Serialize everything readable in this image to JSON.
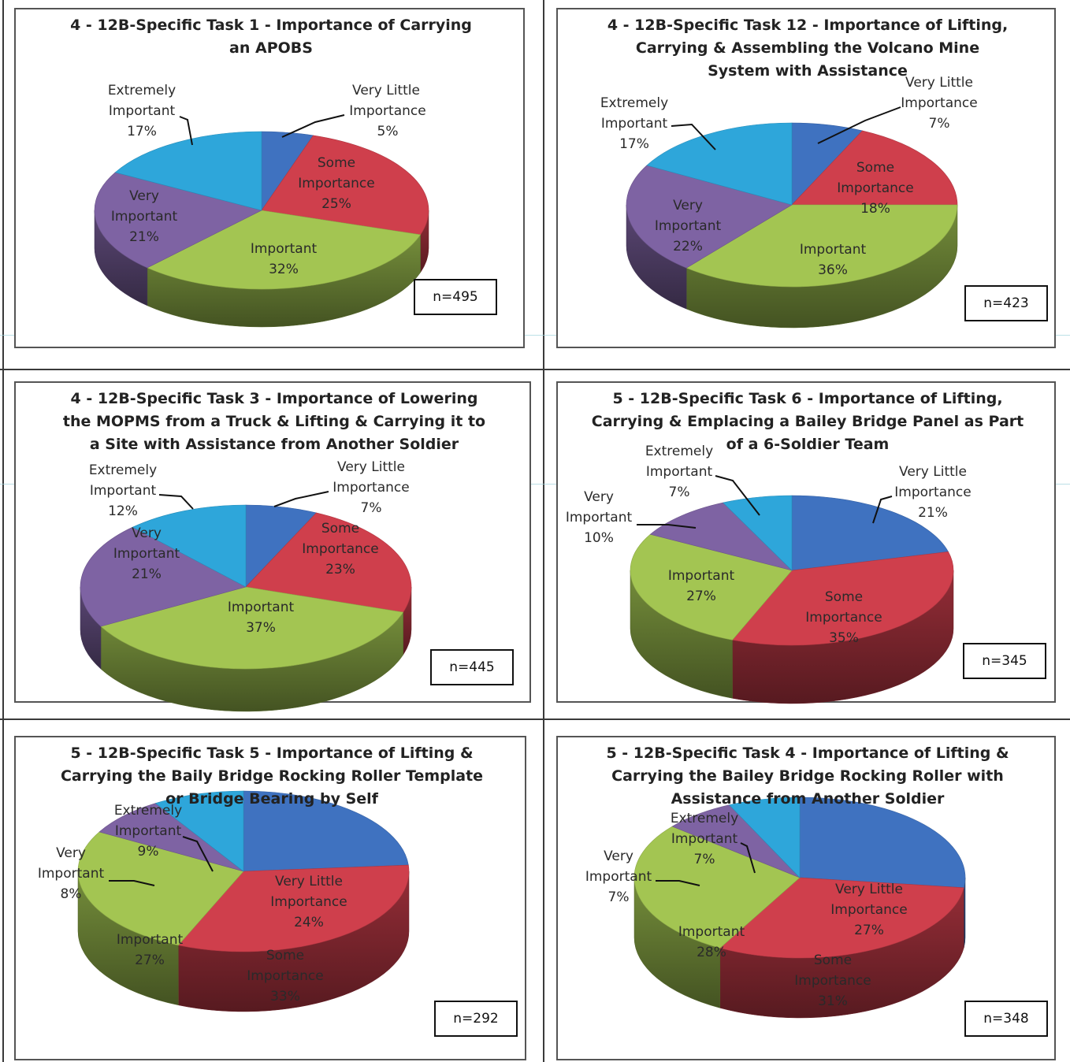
{
  "colors": {
    "Very Little Importance": "#3f72c0",
    "Some Importance": "#cf3f4c",
    "Important": "#a3c552",
    "Very Important": "#7e63a3",
    "Extremely Important": "#2ea6da"
  },
  "chart_data": [
    {
      "type": "pie",
      "title": "4 - 12B-Specific Task 1 - Importance of Carrying an APOBS",
      "n_label": "n=495",
      "slices": [
        {
          "label": "Very Little Importance",
          "value": 5,
          "text": "5%"
        },
        {
          "label": "Some Importance",
          "value": 25,
          "text": "25%"
        },
        {
          "label": "Important",
          "value": 32,
          "text": "32%"
        },
        {
          "label": "Very Important",
          "value": 21,
          "text": "21%"
        },
        {
          "label": "Extremely Important",
          "value": 17,
          "text": "17%"
        }
      ]
    },
    {
      "type": "pie",
      "title": "4 - 12B-Specific Task 12 - Importance of Lifting, Carrying & Assembling the Volcano Mine System with Assistance",
      "n_label": "n=423",
      "slices": [
        {
          "label": "Very Little Importance",
          "value": 7,
          "text": "7%"
        },
        {
          "label": "Some Importance",
          "value": 18,
          "text": "18%"
        },
        {
          "label": "Important",
          "value": 36,
          "text": "36%"
        },
        {
          "label": "Very Important",
          "value": 22,
          "text": "22%"
        },
        {
          "label": "Extremely Important",
          "value": 17,
          "text": "17%"
        }
      ]
    },
    {
      "type": "pie",
      "title": "4 - 12B-Specific Task 3 - Importance of Lowering the MOPMS from a Truck & Lifting & Carrying it to a Site with Assistance from Another Soldier",
      "n_label": "n=445",
      "slices": [
        {
          "label": "Very Little Importance",
          "value": 7,
          "text": "7%"
        },
        {
          "label": "Some Importance",
          "value": 23,
          "text": "23%"
        },
        {
          "label": "Important",
          "value": 37,
          "text": "37%"
        },
        {
          "label": "Very Important",
          "value": 21,
          "text": "21%"
        },
        {
          "label": "Extremely Important",
          "value": 12,
          "text": "12%"
        }
      ]
    },
    {
      "type": "pie",
      "title": "5 - 12B-Specific Task 6 - Importance of Lifting, Carrying & Emplacing a Bailey Bridge Panel as Part of a 6-Soldier Team",
      "n_label": "n=345",
      "slices": [
        {
          "label": "Very Little Importance",
          "value": 21,
          "text": "21%"
        },
        {
          "label": "Some Importance",
          "value": 35,
          "text": "35%"
        },
        {
          "label": "Important",
          "value": 27,
          "text": "27%"
        },
        {
          "label": "Very Important",
          "value": 10,
          "text": "10%"
        },
        {
          "label": "Extremely Important",
          "value": 7,
          "text": "7%"
        }
      ]
    },
    {
      "type": "pie",
      "title": "5 - 12B-Specific Task 5 - Importance of Lifting & Carrying the Baily Bridge Rocking Roller Template or Bridge Bearing by Self",
      "n_label": "n=292",
      "slices": [
        {
          "label": "Very Little Importance",
          "value": 24,
          "text": "24%"
        },
        {
          "label": "Some Importance",
          "value": 33,
          "text": "33%"
        },
        {
          "label": "Important",
          "value": 27,
          "text": "27%"
        },
        {
          "label": "Very Important",
          "value": 8,
          "text": "8%"
        },
        {
          "label": "Extremely Important",
          "value": 9,
          "text": "9%"
        }
      ]
    },
    {
      "type": "pie",
      "title": "5 - 12B-Specific Task 4 - Importance of Lifting & Carrying the Bailey Bridge Rocking Roller with Assistance from Another Soldier",
      "n_label": "n=348",
      "slices": [
        {
          "label": "Very Little Importance",
          "value": 27,
          "text": "27%"
        },
        {
          "label": "Some Importance",
          "value": 31,
          "text": "31%"
        },
        {
          "label": "Important",
          "value": 28,
          "text": "28%"
        },
        {
          "label": "Very Important",
          "value": 7,
          "text": "7%"
        },
        {
          "label": "Extremely Important",
          "value": 7,
          "text": "7%"
        }
      ]
    }
  ]
}
